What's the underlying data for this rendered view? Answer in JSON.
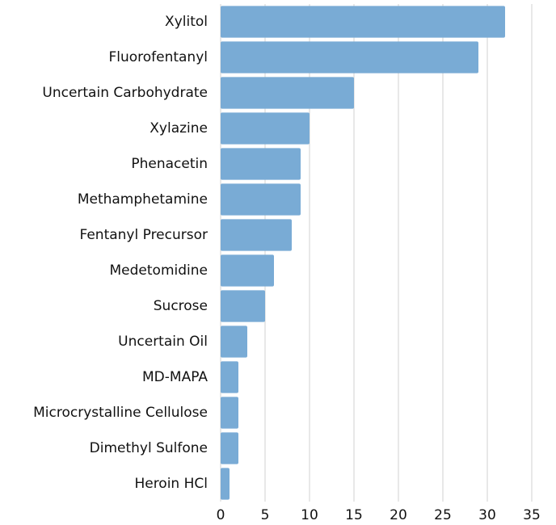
{
  "chart_data": {
    "type": "barh",
    "categories": [
      "Xylitol",
      "Fluorofentanyl",
      "Uncertain Carbohydrate",
      "Xylazine",
      "Phenacetin",
      "Methamphetamine",
      "Fentanyl Precursor",
      "Medetomidine",
      "Sucrose",
      "Uncertain Oil",
      "MD-MAPA",
      "Microcrystalline Cellulose",
      "Dimethyl Sulfone",
      "Heroin HCl"
    ],
    "values": [
      32,
      29,
      15,
      10,
      9,
      9,
      8,
      6,
      5,
      3,
      2,
      2,
      2,
      1
    ],
    "color": "#79abd5",
    "xlim": [
      0,
      35
    ],
    "xticks": [
      0,
      5,
      10,
      15,
      20,
      25,
      30,
      35
    ],
    "grid": true
  }
}
